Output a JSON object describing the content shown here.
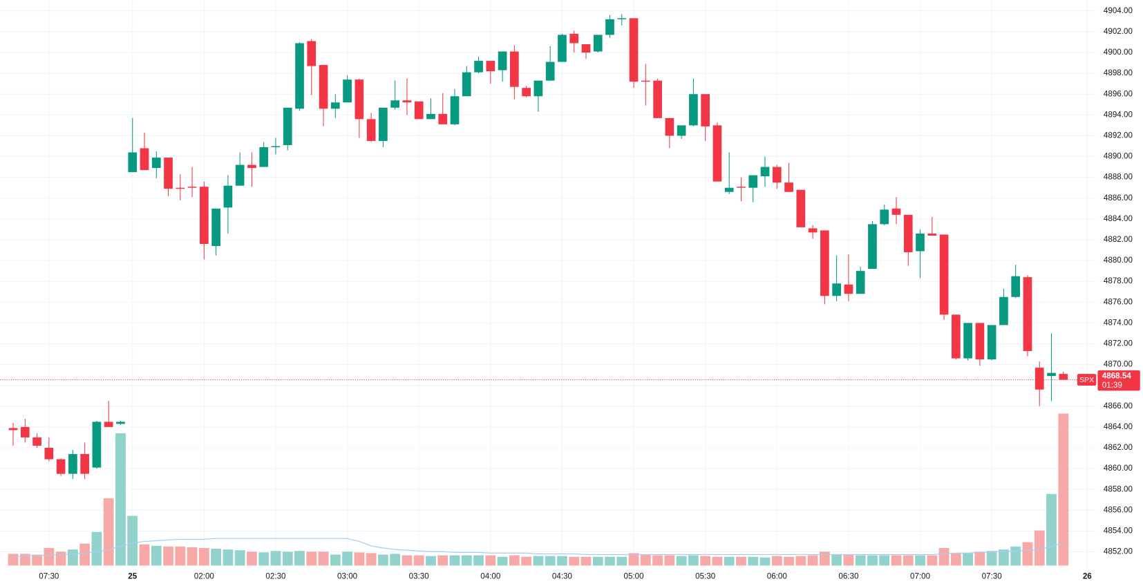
{
  "chart_data": {
    "type": "candlestick",
    "categories": [
      null,
      null,
      null,
      "07:30",
      null,
      null,
      null,
      null,
      null,
      null,
      "25",
      null,
      null,
      null,
      null,
      null,
      "02:00",
      null,
      null,
      null,
      null,
      null,
      "02:30",
      null,
      null,
      null,
      null,
      null,
      "03:00",
      null,
      null,
      null,
      null,
      null,
      "03:30",
      null,
      null,
      null,
      null,
      null,
      "04:00",
      null,
      null,
      null,
      null,
      null,
      "04:30",
      null,
      null,
      null,
      null,
      null,
      "05:00",
      null,
      null,
      null,
      null,
      null,
      "05:30",
      null,
      null,
      null,
      null,
      null,
      "06:00",
      null,
      null,
      null,
      null,
      null,
      "06:30",
      null,
      null,
      null,
      null,
      null,
      "07:00",
      null,
      null,
      null,
      null,
      null,
      "07:30",
      null,
      null,
      null,
      null,
      null,
      null,
      null,
      "26"
    ],
    "bold_categories": [
      "25",
      "26"
    ],
    "open": [
      4863.9,
      4864.0,
      4863.0,
      4862.0,
      4860.9,
      4859.5,
      4861.4,
      4860.1,
      4864.5,
      4864.3,
      4888.5,
      4890.8,
      4888.9,
      4889.9,
      4887.0,
      4887.1,
      4887.1,
      4881.4,
      4885.1,
      4887.2,
      4889.2,
      4889.0,
      4890.9,
      4891.1,
      4894.6,
      4901.1,
      4898.8,
      4894.6,
      4895.2,
      4897.4,
      4893.6,
      4891.5,
      4894.7,
      4895.4,
      4895.3,
      4893.6,
      4894.1,
      4893.1,
      4895.8,
      4898.1,
      4899.2,
      4898.3,
      4900.1,
      4896.6,
      4895.8,
      4897.3,
      4899.1,
      4901.8,
      4900.8,
      4900.1,
      4901.7,
      4903.2,
      4903.3,
      4897.3,
      4897.3,
      4893.7,
      4892.0,
      4893.0,
      4896.0,
      4893.0,
      4886.6,
      4887.1,
      4887.0,
      4888.1,
      4889.0,
      4887.5,
      4886.8,
      4883.1,
      4882.9,
      4876.6,
      4877.7,
      4876.8,
      4879.2,
      4883.5,
      4885.0,
      4884.4,
      4880.9,
      4882.6,
      4882.5,
      4874.8,
      4870.6,
      4874.0,
      4870.5,
      4873.8,
      4876.5,
      4878.4,
      4869.7,
      4868.9,
      4869.1,
      null,
      null
    ],
    "high": [
      4864.4,
      4864.8,
      4863.4,
      4863.0,
      4861.0,
      4861.8,
      4862.5,
      4864.6,
      4866.5,
      4864.6,
      4893.7,
      4892.3,
      4890.5,
      4889.9,
      4888.3,
      4889.0,
      4887.6,
      4885.0,
      4888.2,
      4890.4,
      4890.4,
      4891.4,
      4891.8,
      4894.7,
      4901.0,
      4901.3,
      4898.8,
      4896.0,
      4897.8,
      4897.5,
      4894.2,
      4894.7,
      4897.3,
      4897.5,
      4895.3,
      4895.6,
      4896.1,
      4896.5,
      4898.7,
      4899.6,
      4899.2,
      4900.1,
      4900.7,
      4896.8,
      4897.3,
      4900.6,
      4901.8,
      4902.1,
      4900.8,
      4901.7,
      4903.6,
      4903.7,
      4903.3,
      4898.9,
      4897.5,
      4893.7,
      4893.0,
      4897.5,
      4896.0,
      4893.3,
      4890.4,
      4888.0,
      4888.2,
      4890.0,
      4889.2,
      4889.4,
      4886.8,
      4883.4,
      4882.9,
      4880.5,
      4880.6,
      4879.4,
      4883.8,
      4885.4,
      4886.1,
      4884.4,
      4883.0,
      4884.2,
      4882.5,
      4874.8,
      4874.0,
      4874.0,
      4873.8,
      4877.3,
      4879.6,
      4878.6,
      4870.3,
      4873.0,
      4869.3,
      null,
      null
    ],
    "low": [
      4862.2,
      4862.5,
      4862.0,
      4860.7,
      4859.3,
      4859.0,
      4859.0,
      4860.0,
      4864.0,
      4864.2,
      4888.5,
      4888.7,
      4887.9,
      4886.2,
      4885.8,
      4886.1,
      4880.1,
      4880.5,
      4882.6,
      4887.2,
      4887.1,
      4889.0,
      4890.2,
      4890.6,
      4894.4,
      4895.9,
      4892.9,
      4893.7,
      4895.2,
      4891.8,
      4891.4,
      4890.9,
      4894.5,
      4894.0,
      4893.6,
      4893.6,
      4893.1,
      4893.0,
      4895.8,
      4898.0,
      4897.0,
      4897.2,
      4895.5,
      4895.7,
      4894.3,
      4897.3,
      4899.1,
      4900.0,
      4899.4,
      4900.0,
      4901.4,
      4902.6,
      4896.6,
      4894.9,
      4893.7,
      4890.8,
      4891.7,
      4892.9,
      4891.5,
      4887.6,
      4886.4,
      4885.7,
      4885.6,
      4887.1,
      4886.9,
      4886.6,
      4883.2,
      4882.1,
      4875.8,
      4876.1,
      4876.1,
      4876.8,
      4879.2,
      4883.4,
      4883.5,
      4879.5,
      4878.3,
      4882.4,
      4874.3,
      4870.5,
      4870.4,
      4869.9,
      4870.4,
      4873.8,
      4876.4,
      4870.8,
      4866.0,
      4866.5,
      4868.5,
      null,
      null
    ],
    "close": [
      4863.7,
      4863.0,
      4862.2,
      4860.9,
      4859.5,
      4861.4,
      4859.5,
      4864.5,
      4864.0,
      4864.5,
      4890.4,
      4888.7,
      4889.9,
      4886.9,
      4886.9,
      4887.0,
      4881.6,
      4885.0,
      4887.2,
      4889.2,
      4888.9,
      4890.9,
      4891.0,
      4894.7,
      4900.9,
      4898.7,
      4894.6,
      4895.2,
      4897.4,
      4893.6,
      4891.5,
      4894.7,
      4895.4,
      4895.2,
      4893.6,
      4894.1,
      4893.1,
      4895.8,
      4898.1,
      4899.2,
      4898.2,
      4900.1,
      4896.7,
      4895.8,
      4897.3,
      4899.1,
      4901.7,
      4900.9,
      4900.0,
      4901.7,
      4903.2,
      4903.3,
      4897.2,
      4897.2,
      4893.7,
      4892.0,
      4893.0,
      4896.0,
      4892.9,
      4887.6,
      4887.0,
      4887.0,
      4888.2,
      4889.0,
      4887.5,
      4886.6,
      4883.2,
      4882.7,
      4876.6,
      4877.8,
      4876.8,
      4879.0,
      4883.5,
      4884.9,
      4884.4,
      4880.8,
      4882.6,
      4882.4,
      4874.8,
      4870.6,
      4874.0,
      4870.5,
      4873.8,
      4876.5,
      4878.5,
      4871.3,
      4867.6,
      4869.2,
      4868.54,
      null,
      null
    ],
    "volume": [
      16,
      16,
      15,
      24,
      19,
      22,
      30,
      46,
      92,
      181,
      68,
      29,
      27,
      26,
      26,
      25,
      24,
      23,
      22,
      21,
      19,
      18,
      20,
      19,
      20,
      19,
      19,
      15,
      19,
      18,
      17,
      15,
      16,
      14,
      14,
      13,
      14,
      14,
      14,
      14,
      14,
      12,
      14,
      12,
      13,
      13,
      13,
      12,
      12,
      12,
      12,
      12,
      17,
      15,
      14,
      14,
      13,
      14,
      13,
      12,
      12,
      12,
      12,
      11,
      13,
      12,
      13,
      14,
      19,
      15,
      15,
      14,
      14,
      14,
      14,
      14,
      14,
      14,
      24,
      17,
      17,
      19,
      20,
      22,
      26,
      32,
      48,
      98,
      208,
      null,
      null
    ],
    "volume_ma": [
      12,
      13,
      14,
      14,
      15,
      16,
      17,
      19,
      22,
      26,
      31,
      33,
      34,
      35,
      36,
      36,
      36,
      37,
      37,
      37,
      37,
      37,
      37,
      37,
      37,
      37,
      37,
      37,
      37,
      33,
      27,
      24,
      22,
      21,
      20,
      19,
      19,
      18,
      18,
      18,
      17,
      17,
      17,
      17,
      16,
      16,
      16,
      16,
      15,
      15,
      15,
      15,
      15,
      15,
      15,
      15,
      15,
      15,
      15,
      15,
      15,
      15,
      15,
      15,
      15,
      15,
      15,
      15,
      15,
      15,
      15,
      15,
      15,
      15,
      15,
      15,
      15,
      15,
      16,
      17,
      17,
      18,
      19,
      19,
      20,
      21,
      22,
      26,
      32,
      null,
      null
    ],
    "up_color": "#089981",
    "down_color": "#f23645",
    "up_volume_color": "#92d2cc",
    "down_volume_color": "#f7a9a7",
    "volume_ma_color": "#a9cdf5",
    "ylim": [
      4850.4,
      4905.05
    ],
    "yticks": [
      {
        "value": 4852,
        "label": "4852.00"
      },
      {
        "value": 4854,
        "label": "4854.00"
      },
      {
        "value": 4856,
        "label": "4856.00"
      },
      {
        "value": 4858,
        "label": "4858.00"
      },
      {
        "value": 4860,
        "label": "4860.00"
      },
      {
        "value": 4862,
        "label": "4862.00"
      },
      {
        "value": 4864,
        "label": "4864.00"
      },
      {
        "value": 4866,
        "label": "4866.00"
      },
      {
        "value": 4868,
        "label": "4868.00"
      },
      {
        "value": 4870,
        "label": "4870.00"
      },
      {
        "value": 4872,
        "label": "4872.00"
      },
      {
        "value": 4874,
        "label": "4874.00"
      },
      {
        "value": 4876,
        "label": "4876.00"
      },
      {
        "value": 4878,
        "label": "4878.00"
      },
      {
        "value": 4880,
        "label": "4880.00"
      },
      {
        "value": 4882,
        "label": "4882.00"
      },
      {
        "value": 4884,
        "label": "4884.00"
      },
      {
        "value": 4886,
        "label": "4886.00"
      },
      {
        "value": 4888,
        "label": "4888.00"
      },
      {
        "value": 4890,
        "label": "4890.00"
      },
      {
        "value": 4892,
        "label": "4892.00"
      },
      {
        "value": 4894,
        "label": "4894.00"
      },
      {
        "value": 4896,
        "label": "4896.00"
      },
      {
        "value": 4898,
        "label": "4898.00"
      },
      {
        "value": 4900,
        "label": "4900.00"
      },
      {
        "value": 4902,
        "label": "4902.00"
      },
      {
        "value": 4904,
        "label": "4904.00"
      }
    ],
    "grid": true,
    "last_price": {
      "symbol": "SPX",
      "value": 4868.54,
      "countdown": "01:39"
    }
  }
}
